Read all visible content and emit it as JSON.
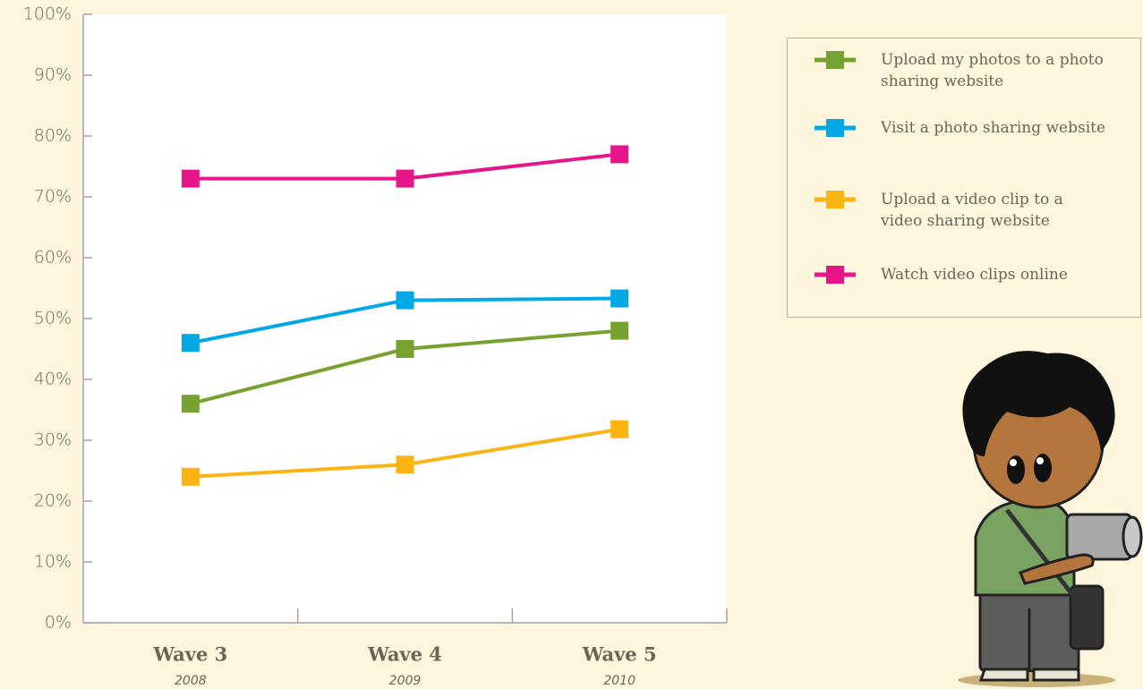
{
  "chart_data": {
    "type": "line",
    "categories": [
      "Wave 3",
      "Wave 4",
      "Wave 5"
    ],
    "category_years": [
      "2008",
      "2009",
      "2010"
    ],
    "series": [
      {
        "name": "Upload my photos to a photo sharing website",
        "color": "#77a22f",
        "values": [
          36,
          45,
          48
        ]
      },
      {
        "name": "Visit a photo sharing website",
        "color": "#00a9e6",
        "values": [
          46,
          53,
          53.3
        ]
      },
      {
        "name": "Upload a video clip to a video sharing website",
        "color": "#fbb414",
        "values": [
          24,
          26,
          31.8
        ]
      },
      {
        "name": "Watch video clips online",
        "color": "#e6158a",
        "values": [
          73,
          73,
          77
        ]
      }
    ],
    "ylim": [
      0,
      100
    ],
    "yticks": [
      {
        "value": 0,
        "label": "0%"
      },
      {
        "value": 10,
        "label": "10%"
      },
      {
        "value": 20,
        "label": "20%"
      },
      {
        "value": 30,
        "label": "30%"
      },
      {
        "value": 40,
        "label": "40%"
      },
      {
        "value": 50,
        "label": "50%"
      },
      {
        "value": 60,
        "label": "60%"
      },
      {
        "value": 70,
        "label": "70%"
      },
      {
        "value": 80,
        "label": "80%"
      },
      {
        "value": 90,
        "label": "90%"
      },
      {
        "value": 100,
        "label": "100%"
      }
    ],
    "legend": "top-right"
  }
}
